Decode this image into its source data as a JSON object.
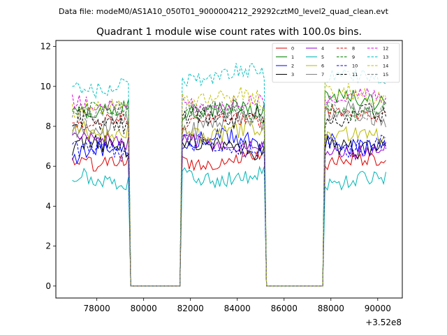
{
  "suptitle": "Data file: modeM0/AS1A10_050T01_9000004212_29292cztM0_level2_quad_clean.evt",
  "chart_data": {
    "type": "line",
    "title": "Quadrant 1 module wise count rates with 100.0s bins.",
    "xlabel": "",
    "ylabel": "",
    "x_offset_label": "+3.52e8",
    "xlim": [
      76250,
      91050
    ],
    "ylim": [
      -0.6,
      12.3
    ],
    "x_ticks": [
      78000,
      80000,
      82000,
      84000,
      86000,
      88000,
      90000
    ],
    "x_tick_labels": [
      "78000",
      "80000",
      "82000",
      "84000",
      "86000",
      "88000",
      "90000"
    ],
    "y_ticks": [
      0,
      2,
      4,
      6,
      8,
      10,
      12
    ],
    "y_tick_labels": [
      "0",
      "2",
      "4",
      "6",
      "8",
      "10",
      "12"
    ],
    "legend_position": "top-right",
    "segments": [
      {
        "start": 76950,
        "end": 79350,
        "gap_to": 79450
      },
      {
        "start": 81650,
        "end": 85150,
        "edge_from": 81550,
        "gap_to": 85250
      },
      {
        "start": 87750,
        "end": 90350,
        "edge_from": 87650
      }
    ],
    "gaps": [
      {
        "start": 79450,
        "end": 81550
      },
      {
        "start": 85250,
        "end": 87650
      }
    ],
    "series": [
      {
        "name": "0",
        "color": "#e00000",
        "dash": "solid",
        "levels": [
          6.3,
          6.3,
          6.2
        ]
      },
      {
        "name": "1",
        "color": "#008000",
        "dash": "solid",
        "levels": [
          8.8,
          8.8,
          9.3
        ]
      },
      {
        "name": "2",
        "color": "#0000ff",
        "dash": "solid",
        "levels": [
          6.7,
          7.3,
          7.1
        ]
      },
      {
        "name": "3",
        "color": "#000000",
        "dash": "solid",
        "levels": [
          6.9,
          7.0,
          7.0
        ]
      },
      {
        "name": "4",
        "color": "#9400d3",
        "dash": "solid",
        "levels": [
          7.3,
          7.1,
          6.8
        ]
      },
      {
        "name": "5",
        "color": "#00b5b5",
        "dash": "solid",
        "levels": [
          5.4,
          5.5,
          5.3
        ]
      },
      {
        "name": "6",
        "color": "#b8b800",
        "dash": "solid",
        "levels": [
          7.9,
          7.7,
          7.5
        ]
      },
      {
        "name": "7",
        "color": "#808080",
        "dash": "solid",
        "levels": [
          8.1,
          8.1,
          8.6
        ]
      },
      {
        "name": "8",
        "color": "#e00000",
        "dash": "dashed",
        "levels": [
          8.2,
          8.3,
          8.6
        ]
      },
      {
        "name": "9",
        "color": "#008000",
        "dash": "dashed",
        "levels": [
          8.7,
          8.6,
          8.8
        ]
      },
      {
        "name": "10",
        "color": "#0000ff",
        "dash": "dashed",
        "levels": [
          6.7,
          7.0,
          7.1
        ]
      },
      {
        "name": "11",
        "color": "#000000",
        "dash": "dashed",
        "levels": [
          8.3,
          8.5,
          8.5
        ]
      },
      {
        "name": "12",
        "color": "#e000e0",
        "dash": "dashed",
        "levels": [
          9.2,
          9.2,
          9.4
        ]
      },
      {
        "name": "13",
        "color": "#00c0c0",
        "dash": "dashed",
        "levels": [
          10.0,
          10.6,
          10.4
        ]
      },
      {
        "name": "14",
        "color": "#c0c000",
        "dash": "dashed",
        "levels": [
          9.0,
          9.4,
          9.6
        ]
      },
      {
        "name": "15",
        "color": "#808080",
        "dash": "dashed",
        "levels": [
          8.6,
          8.7,
          9.0
        ]
      }
    ]
  }
}
